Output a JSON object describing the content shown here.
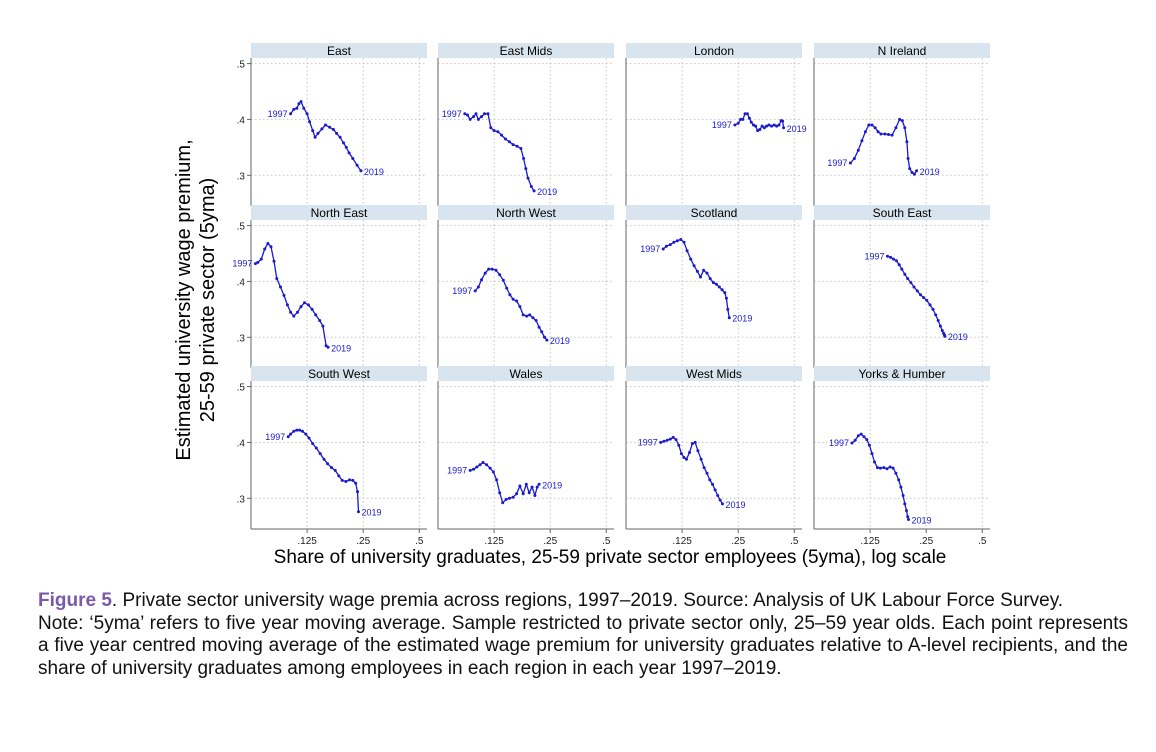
{
  "chart_data": {
    "type": "line",
    "layout": "small-multiples",
    "ylabel": [
      "Estimated university wage premium,",
      "25-59 private sector (5yma)"
    ],
    "xlabel": "Share of university graduates, 25-59 private sector employees (5yma), log scale",
    "x_scale": "log",
    "xlim": [
      0.0625,
      0.55
    ],
    "ylim": [
      0.245,
      0.51
    ],
    "x_ticks": [
      {
        "value": 0.125,
        "label": ".125"
      },
      {
        "value": 0.25,
        "label": ".25"
      },
      {
        "value": 0.5,
        "label": ".5"
      }
    ],
    "y_ticks": [
      {
        "value": 0.3,
        "label": ".3"
      },
      {
        "value": 0.4,
        "label": ".4"
      },
      {
        "value": 0.5,
        "label": ".5"
      }
    ],
    "start_label": "1997",
    "end_label": "2019",
    "line_color": "#1a1acc",
    "strip_color": "#d9e5ee",
    "panels": [
      {
        "name": "East",
        "points": [
          [
            0.102,
            0.41
          ],
          [
            0.106,
            0.418
          ],
          [
            0.11,
            0.42
          ],
          [
            0.113,
            0.428
          ],
          [
            0.116,
            0.432
          ],
          [
            0.12,
            0.42
          ],
          [
            0.125,
            0.41
          ],
          [
            0.129,
            0.396
          ],
          [
            0.134,
            0.38
          ],
          [
            0.138,
            0.368
          ],
          [
            0.143,
            0.375
          ],
          [
            0.15,
            0.383
          ],
          [
            0.157,
            0.39
          ],
          [
            0.165,
            0.386
          ],
          [
            0.173,
            0.382
          ],
          [
            0.18,
            0.375
          ],
          [
            0.188,
            0.368
          ],
          [
            0.196,
            0.358
          ],
          [
            0.203,
            0.35
          ],
          [
            0.21,
            0.34
          ],
          [
            0.22,
            0.33
          ],
          [
            0.232,
            0.318
          ],
          [
            0.243,
            0.308
          ]
        ]
      },
      {
        "name": "East Mids",
        "points": [
          [
            0.087,
            0.41
          ],
          [
            0.09,
            0.408
          ],
          [
            0.093,
            0.4
          ],
          [
            0.097,
            0.405
          ],
          [
            0.1,
            0.41
          ],
          [
            0.103,
            0.4
          ],
          [
            0.107,
            0.405
          ],
          [
            0.111,
            0.41
          ],
          [
            0.116,
            0.41
          ],
          [
            0.12,
            0.385
          ],
          [
            0.125,
            0.38
          ],
          [
            0.131,
            0.378
          ],
          [
            0.137,
            0.372
          ],
          [
            0.144,
            0.365
          ],
          [
            0.151,
            0.36
          ],
          [
            0.158,
            0.355
          ],
          [
            0.166,
            0.352
          ],
          [
            0.174,
            0.348
          ],
          [
            0.18,
            0.33
          ],
          [
            0.185,
            0.312
          ],
          [
            0.19,
            0.295
          ],
          [
            0.198,
            0.28
          ],
          [
            0.205,
            0.272
          ]
        ]
      },
      {
        "name": "London",
        "points": [
          [
            0.24,
            0.39
          ],
          [
            0.25,
            0.393
          ],
          [
            0.258,
            0.4
          ],
          [
            0.265,
            0.4
          ],
          [
            0.272,
            0.41
          ],
          [
            0.28,
            0.41
          ],
          [
            0.287,
            0.402
          ],
          [
            0.294,
            0.395
          ],
          [
            0.302,
            0.39
          ],
          [
            0.31,
            0.388
          ],
          [
            0.318,
            0.38
          ],
          [
            0.327,
            0.382
          ],
          [
            0.336,
            0.388
          ],
          [
            0.345,
            0.385
          ],
          [
            0.355,
            0.388
          ],
          [
            0.366,
            0.39
          ],
          [
            0.378,
            0.388
          ],
          [
            0.39,
            0.39
          ],
          [
            0.402,
            0.388
          ],
          [
            0.414,
            0.39
          ],
          [
            0.425,
            0.398
          ],
          [
            0.433,
            0.397
          ],
          [
            0.438,
            0.385
          ]
        ]
      },
      {
        "name": "N Ireland",
        "points": [
          [
            0.098,
            0.322
          ],
          [
            0.103,
            0.33
          ],
          [
            0.108,
            0.345
          ],
          [
            0.113,
            0.362
          ],
          [
            0.118,
            0.378
          ],
          [
            0.123,
            0.39
          ],
          [
            0.128,
            0.39
          ],
          [
            0.133,
            0.385
          ],
          [
            0.138,
            0.378
          ],
          [
            0.143,
            0.374
          ],
          [
            0.15,
            0.374
          ],
          [
            0.157,
            0.373
          ],
          [
            0.164,
            0.372
          ],
          [
            0.172,
            0.385
          ],
          [
            0.18,
            0.4
          ],
          [
            0.186,
            0.398
          ],
          [
            0.192,
            0.385
          ],
          [
            0.197,
            0.36
          ],
          [
            0.2,
            0.33
          ],
          [
            0.204,
            0.312
          ],
          [
            0.21,
            0.305
          ],
          [
            0.216,
            0.302
          ],
          [
            0.222,
            0.308
          ]
        ]
      },
      {
        "name": "North East",
        "points": [
          [
            0.066,
            0.432
          ],
          [
            0.068,
            0.434
          ],
          [
            0.071,
            0.44
          ],
          [
            0.074,
            0.458
          ],
          [
            0.077,
            0.468
          ],
          [
            0.08,
            0.462
          ],
          [
            0.083,
            0.436
          ],
          [
            0.086,
            0.405
          ],
          [
            0.09,
            0.39
          ],
          [
            0.094,
            0.375
          ],
          [
            0.098,
            0.358
          ],
          [
            0.102,
            0.345
          ],
          [
            0.106,
            0.338
          ],
          [
            0.111,
            0.345
          ],
          [
            0.116,
            0.355
          ],
          [
            0.121,
            0.362
          ],
          [
            0.127,
            0.358
          ],
          [
            0.133,
            0.35
          ],
          [
            0.139,
            0.34
          ],
          [
            0.146,
            0.33
          ],
          [
            0.152,
            0.32
          ],
          [
            0.158,
            0.285
          ],
          [
            0.162,
            0.282
          ]
        ]
      },
      {
        "name": "North West",
        "points": [
          [
            0.099,
            0.383
          ],
          [
            0.103,
            0.39
          ],
          [
            0.107,
            0.403
          ],
          [
            0.112,
            0.415
          ],
          [
            0.117,
            0.422
          ],
          [
            0.122,
            0.422
          ],
          [
            0.128,
            0.42
          ],
          [
            0.134,
            0.412
          ],
          [
            0.14,
            0.402
          ],
          [
            0.146,
            0.388
          ],
          [
            0.152,
            0.376
          ],
          [
            0.158,
            0.368
          ],
          [
            0.165,
            0.365
          ],
          [
            0.172,
            0.355
          ],
          [
            0.179,
            0.34
          ],
          [
            0.187,
            0.338
          ],
          [
            0.194,
            0.34
          ],
          [
            0.202,
            0.335
          ],
          [
            0.21,
            0.33
          ],
          [
            0.218,
            0.318
          ],
          [
            0.225,
            0.31
          ],
          [
            0.233,
            0.3
          ],
          [
            0.24,
            0.295
          ]
        ]
      },
      {
        "name": "Scotland",
        "points": [
          [
            0.099,
            0.458
          ],
          [
            0.103,
            0.463
          ],
          [
            0.108,
            0.466
          ],
          [
            0.113,
            0.47
          ],
          [
            0.118,
            0.473
          ],
          [
            0.123,
            0.475
          ],
          [
            0.128,
            0.47
          ],
          [
            0.133,
            0.455
          ],
          [
            0.139,
            0.44
          ],
          [
            0.145,
            0.428
          ],
          [
            0.151,
            0.418
          ],
          [
            0.157,
            0.408
          ],
          [
            0.163,
            0.42
          ],
          [
            0.17,
            0.415
          ],
          [
            0.177,
            0.405
          ],
          [
            0.184,
            0.398
          ],
          [
            0.191,
            0.395
          ],
          [
            0.198,
            0.39
          ],
          [
            0.205,
            0.385
          ],
          [
            0.212,
            0.38
          ],
          [
            0.216,
            0.37
          ],
          [
            0.22,
            0.35
          ],
          [
            0.224,
            0.335
          ]
        ]
      },
      {
        "name": "South East",
        "points": [
          [
            0.155,
            0.445
          ],
          [
            0.161,
            0.443
          ],
          [
            0.167,
            0.44
          ],
          [
            0.173,
            0.437
          ],
          [
            0.179,
            0.43
          ],
          [
            0.185,
            0.422
          ],
          [
            0.192,
            0.413
          ],
          [
            0.199,
            0.405
          ],
          [
            0.207,
            0.398
          ],
          [
            0.215,
            0.39
          ],
          [
            0.224,
            0.383
          ],
          [
            0.233,
            0.376
          ],
          [
            0.242,
            0.371
          ],
          [
            0.252,
            0.366
          ],
          [
            0.262,
            0.358
          ],
          [
            0.272,
            0.35
          ],
          [
            0.281,
            0.34
          ],
          [
            0.29,
            0.33
          ],
          [
            0.298,
            0.32
          ],
          [
            0.305,
            0.312
          ],
          [
            0.31,
            0.307
          ],
          [
            0.313,
            0.304
          ],
          [
            0.315,
            0.302
          ]
        ]
      },
      {
        "name": "South West",
        "points": [
          [
            0.099,
            0.41
          ],
          [
            0.102,
            0.415
          ],
          [
            0.106,
            0.42
          ],
          [
            0.11,
            0.422
          ],
          [
            0.114,
            0.422
          ],
          [
            0.118,
            0.42
          ],
          [
            0.123,
            0.415
          ],
          [
            0.128,
            0.408
          ],
          [
            0.134,
            0.398
          ],
          [
            0.14,
            0.39
          ],
          [
            0.147,
            0.38
          ],
          [
            0.154,
            0.37
          ],
          [
            0.161,
            0.362
          ],
          [
            0.169,
            0.355
          ],
          [
            0.177,
            0.35
          ],
          [
            0.185,
            0.34
          ],
          [
            0.193,
            0.332
          ],
          [
            0.202,
            0.33
          ],
          [
            0.211,
            0.333
          ],
          [
            0.22,
            0.332
          ],
          [
            0.228,
            0.327
          ],
          [
            0.233,
            0.312
          ],
          [
            0.236,
            0.276
          ]
        ]
      },
      {
        "name": "Wales",
        "points": [
          [
            0.093,
            0.35
          ],
          [
            0.097,
            0.352
          ],
          [
            0.101,
            0.356
          ],
          [
            0.105,
            0.36
          ],
          [
            0.109,
            0.364
          ],
          [
            0.114,
            0.36
          ],
          [
            0.119,
            0.354
          ],
          [
            0.124,
            0.347
          ],
          [
            0.129,
            0.333
          ],
          [
            0.134,
            0.31
          ],
          [
            0.139,
            0.292
          ],
          [
            0.145,
            0.298
          ],
          [
            0.151,
            0.3
          ],
          [
            0.158,
            0.302
          ],
          [
            0.165,
            0.308
          ],
          [
            0.172,
            0.322
          ],
          [
            0.179,
            0.308
          ],
          [
            0.186,
            0.325
          ],
          [
            0.193,
            0.31
          ],
          [
            0.2,
            0.32
          ],
          [
            0.207,
            0.305
          ],
          [
            0.213,
            0.32
          ],
          [
            0.218,
            0.325
          ]
        ]
      },
      {
        "name": "West Mids",
        "points": [
          [
            0.096,
            0.4
          ],
          [
            0.1,
            0.402
          ],
          [
            0.104,
            0.404
          ],
          [
            0.108,
            0.406
          ],
          [
            0.112,
            0.409
          ],
          [
            0.116,
            0.405
          ],
          [
            0.12,
            0.395
          ],
          [
            0.124,
            0.38
          ],
          [
            0.128,
            0.373
          ],
          [
            0.132,
            0.37
          ],
          [
            0.137,
            0.382
          ],
          [
            0.142,
            0.398
          ],
          [
            0.147,
            0.4
          ],
          [
            0.152,
            0.385
          ],
          [
            0.158,
            0.37
          ],
          [
            0.164,
            0.355
          ],
          [
            0.17,
            0.345
          ],
          [
            0.176,
            0.333
          ],
          [
            0.182,
            0.325
          ],
          [
            0.188,
            0.315
          ],
          [
            0.194,
            0.305
          ],
          [
            0.2,
            0.297
          ],
          [
            0.206,
            0.29
          ]
        ]
      },
      {
        "name": "Yorks & Humber",
        "points": [
          [
            0.1,
            0.399
          ],
          [
            0.104,
            0.404
          ],
          [
            0.108,
            0.412
          ],
          [
            0.112,
            0.415
          ],
          [
            0.116,
            0.41
          ],
          [
            0.12,
            0.405
          ],
          [
            0.124,
            0.395
          ],
          [
            0.128,
            0.38
          ],
          [
            0.132,
            0.365
          ],
          [
            0.137,
            0.355
          ],
          [
            0.142,
            0.354
          ],
          [
            0.148,
            0.355
          ],
          [
            0.154,
            0.353
          ],
          [
            0.16,
            0.356
          ],
          [
            0.166,
            0.354
          ],
          [
            0.172,
            0.345
          ],
          [
            0.178,
            0.333
          ],
          [
            0.183,
            0.32
          ],
          [
            0.188,
            0.305
          ],
          [
            0.192,
            0.29
          ],
          [
            0.196,
            0.278
          ],
          [
            0.199,
            0.267
          ],
          [
            0.201,
            0.262
          ]
        ]
      }
    ]
  },
  "caption": {
    "figure_label": "Figure 5",
    "figure_text": ". Private sector university wage premia across regions, 1997–2019. Source: Analysis of UK Labour Force Survey.",
    "note": "Note: ‘5yma’ refers to five year moving average. Sample restricted to private sector only, 25–59 year olds. Each point represents a five year centred moving average of the estimated wage premium for university graduates relative to A-level recipients, and the share of university graduates among employees in each region in each year 1997–2019."
  }
}
